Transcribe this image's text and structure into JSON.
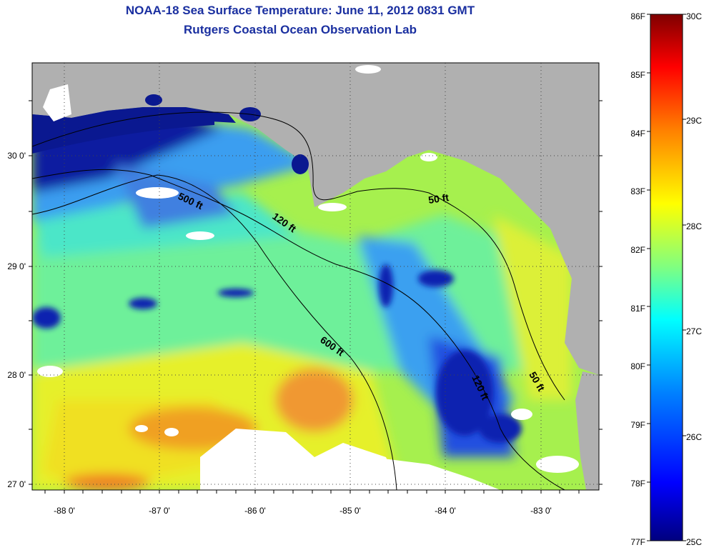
{
  "title": "NOAA-18 Sea Surface Temperature:  June 11, 2012 0831 GMT",
  "subtitle": "Rutgers Coastal Ocean Observation Lab",
  "lon_ticks": [
    "-88 0'",
    "-87 0'",
    "-86 0'",
    "-85 0'",
    "-84 0'",
    "-83 0'"
  ],
  "lat_ticks": [
    "30 0'",
    "29 0'",
    "28 0'",
    "27 0'"
  ],
  "isobath_labels": [
    "500 ft",
    "120 ft",
    "50 ft",
    "600 ft",
    "120 ft",
    "50 ft"
  ],
  "colorbar": {
    "fahrenheit": [
      "86F",
      "85F",
      "84F",
      "83F",
      "82F",
      "81F",
      "80F",
      "79F",
      "78F",
      "77F"
    ],
    "celsius": [
      "30C",
      "29C",
      "28C",
      "27C",
      "26C",
      "25C"
    ],
    "colors": [
      "#7f0000",
      "#ff0000",
      "#ff8000",
      "#ffff00",
      "#80ff80",
      "#00ffff",
      "#0080ff",
      "#0000ff",
      "#00008f"
    ]
  },
  "colors": {
    "land": "#b0b0b0",
    "cloud": "#ffffff",
    "title": "#1a2fa0"
  }
}
